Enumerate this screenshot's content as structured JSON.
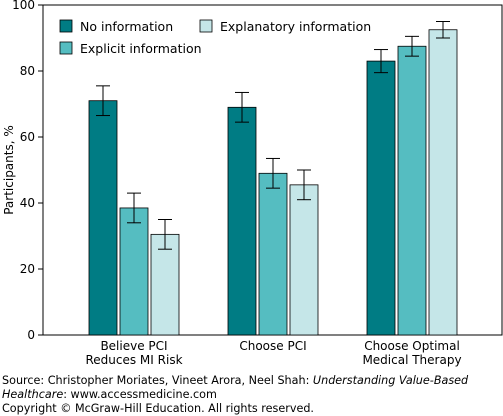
{
  "chart_data": {
    "type": "bar",
    "ylabel": "Participants, %",
    "ylim": [
      0,
      100
    ],
    "yticks": [
      0,
      20,
      40,
      60,
      80,
      100
    ],
    "error_bars": true,
    "legend_position": "top-left",
    "categories": [
      [
        "Believe PCI",
        "Reduces MI Risk"
      ],
      [
        "Choose PCI"
      ],
      [
        "Choose Optimal",
        "Medical Therapy"
      ]
    ],
    "series": [
      {
        "name": "No information",
        "color": "#007c84",
        "values": [
          71,
          69,
          83
        ],
        "err": [
          4.5,
          4.5,
          3.5
        ]
      },
      {
        "name": "Explicit information",
        "color": "#55bdc1",
        "values": [
          38.5,
          49,
          87.5
        ],
        "err": [
          4.5,
          4.5,
          3
        ]
      },
      {
        "name": "Explanatory information",
        "color": "#c5e6e8",
        "values": [
          30.5,
          45.5,
          92.5
        ],
        "err": [
          4.5,
          4.5,
          2.5
        ]
      }
    ]
  },
  "source": {
    "prefix": "Source: Christopher Moriates, Vineet Arora, Neel Shah: ",
    "book_title": "Understanding Value-Based Healthcare",
    "suffix": ": www.accessmedicine.com",
    "copyright": "Copyright © McGraw-Hill Education. All rights reserved."
  }
}
